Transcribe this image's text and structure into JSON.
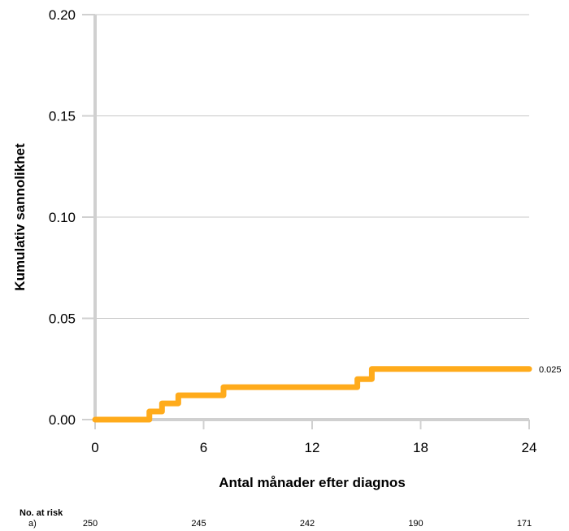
{
  "chart_data": {
    "type": "line",
    "title": "",
    "xlabel": "Antal månader efter diagnos",
    "ylabel": "Kumulativ sannolikhet",
    "xlim": [
      0,
      24
    ],
    "ylim": [
      0,
      0.2
    ],
    "x_ticks": [
      0,
      6,
      12,
      18,
      24
    ],
    "x_tick_labels": [
      "0",
      "6",
      "12",
      "18",
      "24"
    ],
    "y_ticks": [
      0,
      0.05,
      0.1,
      0.15,
      0.2
    ],
    "y_tick_labels": [
      "0.00",
      "0.05",
      "0.10",
      "0.15",
      "0.20"
    ],
    "grid": "horizontal",
    "series": [
      {
        "color": "#FFAB1B",
        "step": true,
        "x": [
          0,
          3.0,
          3.7,
          4.6,
          7.1,
          14.5,
          15.3,
          24
        ],
        "y": [
          0,
          0.004,
          0.008,
          0.012,
          0.016,
          0.02,
          0.025,
          0.025
        ],
        "end_label": "0.025"
      }
    ],
    "risk_table": {
      "title": "No. at risk",
      "rows": [
        {
          "label": "a)",
          "times": [
            0,
            6,
            12,
            18,
            24
          ],
          "values": [
            "250",
            "245",
            "242",
            "190",
            "171"
          ]
        }
      ]
    }
  }
}
